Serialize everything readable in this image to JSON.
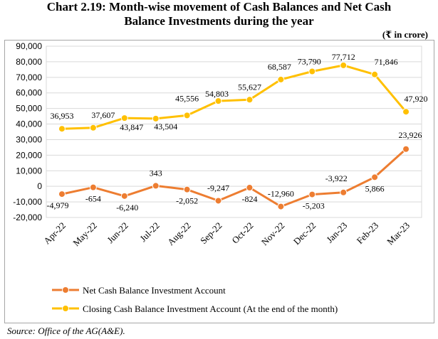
{
  "page": {
    "title_line1": "Chart 2.19: Month-wise movement of Cash Balances and Net Cash",
    "title_line2": "Balance Investments during the year",
    "unit": "(₹ in crore)",
    "source": "Source: Office of the AG(A&E)."
  },
  "chart_data": {
    "type": "line",
    "title": "Month-wise movement of Cash Balances and Net Cash Balance Investments during the year",
    "xlabel": "",
    "ylabel": "",
    "ylim": [
      -20000,
      90000
    ],
    "yticks": [
      90000,
      80000,
      70000,
      60000,
      50000,
      40000,
      30000,
      20000,
      10000,
      0,
      -10000,
      -20000
    ],
    "ytick_labels": [
      "90,000",
      "80,000",
      "70,000",
      "60,000",
      "50,000",
      "40,000",
      "30,000",
      "20,000",
      "10,000",
      "0",
      "-10,000",
      "-20,000"
    ],
    "grid": true,
    "legend_position": "bottom-left",
    "categories": [
      "Apr-22",
      "May-22",
      "Jun-22",
      "Jul-22",
      "Aug-22",
      "Sep-22",
      "Oct-22",
      "Nov-22",
      "Dec-22",
      "Jan-23",
      "Feb-23",
      "Mar-23"
    ],
    "series": [
      {
        "name": "Net Cash Balance Investment Account",
        "color": "#ED7D31",
        "values": [
          -4979,
          -654,
          -6240,
          343,
          -2052,
          -9247,
          -824,
          -12960,
          -5203,
          -3922,
          5866,
          23926
        ],
        "labels": [
          "-4,979",
          "-654",
          "-6,240",
          "343",
          "-2,052",
          "-9,247",
          "-824",
          "-12,960",
          "-5,203",
          "-3,922",
          "5,866",
          "23,926"
        ]
      },
      {
        "name": "Closing Cash Balance Investment Account (At the end of the month)",
        "color": "#FFC000",
        "values": [
          36953,
          37607,
          43847,
          43504,
          45556,
          54803,
          55627,
          68587,
          73790,
          77712,
          71846,
          47920
        ],
        "labels": [
          "36,953",
          "37,607",
          "43,847",
          "43,504",
          "45,556",
          "54,803",
          "55,627",
          "68,587",
          "73,790",
          "77,712",
          "71,846",
          "47,920"
        ]
      }
    ]
  }
}
